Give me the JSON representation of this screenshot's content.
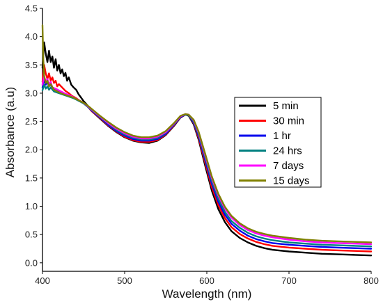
{
  "chart_data": {
    "type": "line",
    "title": "",
    "xlabel": "Wavelength (nm)",
    "ylabel": "Absorbance (a.u)",
    "xlim": [
      400,
      800
    ],
    "ylim": [
      -0.15,
      4.5
    ],
    "x_ticks": [
      400,
      500,
      600,
      700,
      800
    ],
    "y_ticks": [
      0.0,
      0.5,
      1.0,
      1.5,
      2.0,
      2.5,
      3.0,
      3.5,
      4.0,
      4.5
    ],
    "x_tick_labels": [
      "400",
      "500",
      "600",
      "700",
      "800"
    ],
    "y_tick_labels": [
      "0.0",
      "0.5",
      "1.0",
      "1.5",
      "2.0",
      "2.5",
      "3.0",
      "3.5",
      "4.0",
      "4.5"
    ],
    "grid": false,
    "legend_position": "right",
    "series": [
      {
        "name": "5 min",
        "color": "#000000",
        "points": [
          [
            400,
            3.45
          ],
          [
            402,
            3.9
          ],
          [
            404,
            3.7
          ],
          [
            406,
            3.55
          ],
          [
            408,
            3.75
          ],
          [
            410,
            3.55
          ],
          [
            412,
            3.65
          ],
          [
            414,
            3.45
          ],
          [
            416,
            3.6
          ],
          [
            418,
            3.4
          ],
          [
            420,
            3.5
          ],
          [
            422,
            3.35
          ],
          [
            424,
            3.42
          ],
          [
            426,
            3.3
          ],
          [
            428,
            3.36
          ],
          [
            430,
            3.22
          ],
          [
            432,
            3.28
          ],
          [
            435,
            3.15
          ],
          [
            438,
            3.1
          ],
          [
            441,
            3.06
          ],
          [
            444,
            2.98
          ],
          [
            447,
            2.92
          ],
          [
            450,
            2.86
          ],
          [
            455,
            2.78
          ],
          [
            460,
            2.68
          ],
          [
            470,
            2.55
          ],
          [
            480,
            2.42
          ],
          [
            490,
            2.31
          ],
          [
            500,
            2.22
          ],
          [
            510,
            2.16
          ],
          [
            520,
            2.13
          ],
          [
            530,
            2.12
          ],
          [
            540,
            2.16
          ],
          [
            550,
            2.26
          ],
          [
            560,
            2.42
          ],
          [
            568,
            2.57
          ],
          [
            574,
            2.62
          ],
          [
            578,
            2.6
          ],
          [
            584,
            2.45
          ],
          [
            590,
            2.18
          ],
          [
            598,
            1.72
          ],
          [
            606,
            1.28
          ],
          [
            614,
            0.95
          ],
          [
            622,
            0.72
          ],
          [
            630,
            0.56
          ],
          [
            640,
            0.44
          ],
          [
            650,
            0.36
          ],
          [
            660,
            0.3
          ],
          [
            670,
            0.26
          ],
          [
            680,
            0.23
          ],
          [
            700,
            0.2
          ],
          [
            720,
            0.18
          ],
          [
            740,
            0.16
          ],
          [
            760,
            0.15
          ],
          [
            780,
            0.14
          ],
          [
            800,
            0.13
          ]
        ]
      },
      {
        "name": "30 min",
        "color": "#ff0000",
        "points": [
          [
            400,
            3.2
          ],
          [
            402,
            3.5
          ],
          [
            404,
            3.35
          ],
          [
            406,
            3.25
          ],
          [
            408,
            3.35
          ],
          [
            410,
            3.22
          ],
          [
            412,
            3.28
          ],
          [
            414,
            3.18
          ],
          [
            416,
            3.22
          ],
          [
            418,
            3.12
          ],
          [
            420,
            3.16
          ],
          [
            424,
            3.1
          ],
          [
            428,
            3.04
          ],
          [
            432,
            3.0
          ],
          [
            436,
            2.95
          ],
          [
            440,
            2.92
          ],
          [
            445,
            2.87
          ],
          [
            450,
            2.83
          ],
          [
            455,
            2.76
          ],
          [
            460,
            2.68
          ],
          [
            470,
            2.56
          ],
          [
            480,
            2.43
          ],
          [
            490,
            2.32
          ],
          [
            500,
            2.23
          ],
          [
            510,
            2.17
          ],
          [
            520,
            2.14
          ],
          [
            530,
            2.14
          ],
          [
            540,
            2.17
          ],
          [
            550,
            2.27
          ],
          [
            560,
            2.43
          ],
          [
            568,
            2.58
          ],
          [
            574,
            2.62
          ],
          [
            578,
            2.61
          ],
          [
            584,
            2.47
          ],
          [
            590,
            2.21
          ],
          [
            598,
            1.77
          ],
          [
            606,
            1.34
          ],
          [
            614,
            1.02
          ],
          [
            622,
            0.79
          ],
          [
            630,
            0.63
          ],
          [
            640,
            0.51
          ],
          [
            650,
            0.43
          ],
          [
            660,
            0.37
          ],
          [
            670,
            0.33
          ],
          [
            680,
            0.3
          ],
          [
            700,
            0.27
          ],
          [
            720,
            0.25
          ],
          [
            740,
            0.23
          ],
          [
            760,
            0.22
          ],
          [
            780,
            0.21
          ],
          [
            800,
            0.2
          ]
        ]
      },
      {
        "name": "1 hr",
        "color": "#0000ee",
        "points": [
          [
            400,
            3.1
          ],
          [
            402,
            3.25
          ],
          [
            404,
            3.15
          ],
          [
            406,
            3.2
          ],
          [
            408,
            3.12
          ],
          [
            410,
            3.16
          ],
          [
            412,
            3.08
          ],
          [
            416,
            3.05
          ],
          [
            420,
            3.03
          ],
          [
            424,
            3.0
          ],
          [
            428,
            2.98
          ],
          [
            432,
            2.96
          ],
          [
            436,
            2.93
          ],
          [
            440,
            2.9
          ],
          [
            445,
            2.86
          ],
          [
            450,
            2.82
          ],
          [
            455,
            2.76
          ],
          [
            460,
            2.69
          ],
          [
            470,
            2.57
          ],
          [
            480,
            2.44
          ],
          [
            490,
            2.33
          ],
          [
            500,
            2.25
          ],
          [
            510,
            2.19
          ],
          [
            520,
            2.16
          ],
          [
            530,
            2.16
          ],
          [
            540,
            2.19
          ],
          [
            550,
            2.28
          ],
          [
            560,
            2.44
          ],
          [
            568,
            2.58
          ],
          [
            574,
            2.62
          ],
          [
            578,
            2.61
          ],
          [
            584,
            2.48
          ],
          [
            590,
            2.24
          ],
          [
            598,
            1.82
          ],
          [
            606,
            1.4
          ],
          [
            614,
            1.08
          ],
          [
            622,
            0.85
          ],
          [
            630,
            0.69
          ],
          [
            640,
            0.57
          ],
          [
            650,
            0.48
          ],
          [
            660,
            0.42
          ],
          [
            670,
            0.38
          ],
          [
            680,
            0.35
          ],
          [
            700,
            0.32
          ],
          [
            720,
            0.3
          ],
          [
            740,
            0.28
          ],
          [
            760,
            0.27
          ],
          [
            780,
            0.26
          ],
          [
            800,
            0.25
          ]
        ]
      },
      {
        "name": "24 hrs",
        "color": "#008080",
        "points": [
          [
            400,
            3.05
          ],
          [
            402,
            3.15
          ],
          [
            404,
            3.08
          ],
          [
            406,
            3.12
          ],
          [
            408,
            3.06
          ],
          [
            410,
            3.1
          ],
          [
            414,
            3.03
          ],
          [
            418,
            3.01
          ],
          [
            422,
            2.99
          ],
          [
            426,
            2.97
          ],
          [
            430,
            2.95
          ],
          [
            434,
            2.93
          ],
          [
            438,
            2.91
          ],
          [
            442,
            2.88
          ],
          [
            446,
            2.85
          ],
          [
            450,
            2.82
          ],
          [
            455,
            2.76
          ],
          [
            460,
            2.7
          ],
          [
            470,
            2.58
          ],
          [
            480,
            2.46
          ],
          [
            490,
            2.35
          ],
          [
            500,
            2.27
          ],
          [
            510,
            2.21
          ],
          [
            520,
            2.18
          ],
          [
            530,
            2.18
          ],
          [
            540,
            2.21
          ],
          [
            550,
            2.3
          ],
          [
            560,
            2.45
          ],
          [
            568,
            2.59
          ],
          [
            574,
            2.62
          ],
          [
            578,
            2.61
          ],
          [
            584,
            2.5
          ],
          [
            590,
            2.27
          ],
          [
            598,
            1.86
          ],
          [
            606,
            1.45
          ],
          [
            614,
            1.13
          ],
          [
            622,
            0.9
          ],
          [
            630,
            0.74
          ],
          [
            640,
            0.62
          ],
          [
            650,
            0.53
          ],
          [
            660,
            0.47
          ],
          [
            670,
            0.43
          ],
          [
            680,
            0.4
          ],
          [
            700,
            0.36
          ],
          [
            720,
            0.34
          ],
          [
            740,
            0.32
          ],
          [
            760,
            0.31
          ],
          [
            780,
            0.3
          ],
          [
            800,
            0.29
          ]
        ]
      },
      {
        "name": "7 days",
        "color": "#ff00ff",
        "points": [
          [
            400,
            3.15
          ],
          [
            402,
            3.3
          ],
          [
            404,
            3.2
          ],
          [
            406,
            3.25
          ],
          [
            408,
            3.15
          ],
          [
            410,
            3.2
          ],
          [
            412,
            3.1
          ],
          [
            416,
            3.08
          ],
          [
            420,
            3.05
          ],
          [
            424,
            3.02
          ],
          [
            428,
            2.99
          ],
          [
            432,
            2.97
          ],
          [
            436,
            2.94
          ],
          [
            440,
            2.91
          ],
          [
            445,
            2.87
          ],
          [
            450,
            2.83
          ],
          [
            455,
            2.77
          ],
          [
            460,
            2.71
          ],
          [
            470,
            2.59
          ],
          [
            480,
            2.47
          ],
          [
            490,
            2.37
          ],
          [
            500,
            2.29
          ],
          [
            510,
            2.23
          ],
          [
            520,
            2.2
          ],
          [
            530,
            2.2
          ],
          [
            540,
            2.23
          ],
          [
            550,
            2.31
          ],
          [
            560,
            2.46
          ],
          [
            568,
            2.59
          ],
          [
            574,
            2.63
          ],
          [
            578,
            2.62
          ],
          [
            584,
            2.52
          ],
          [
            590,
            2.3
          ],
          [
            598,
            1.9
          ],
          [
            606,
            1.5
          ],
          [
            614,
            1.19
          ],
          [
            622,
            0.96
          ],
          [
            630,
            0.8
          ],
          [
            640,
            0.67
          ],
          [
            650,
            0.58
          ],
          [
            660,
            0.52
          ],
          [
            670,
            0.48
          ],
          [
            680,
            0.45
          ],
          [
            700,
            0.41
          ],
          [
            720,
            0.38
          ],
          [
            740,
            0.36
          ],
          [
            760,
            0.35
          ],
          [
            780,
            0.34
          ],
          [
            800,
            0.33
          ]
        ]
      },
      {
        "name": "15 days",
        "color": "#808000",
        "points": [
          [
            400,
            4.2
          ],
          [
            401,
            3.6
          ],
          [
            402,
            3.3
          ],
          [
            404,
            3.18
          ],
          [
            406,
            3.22
          ],
          [
            408,
            3.12
          ],
          [
            410,
            3.16
          ],
          [
            414,
            3.06
          ],
          [
            418,
            3.03
          ],
          [
            422,
            3.0
          ],
          [
            426,
            2.98
          ],
          [
            430,
            2.96
          ],
          [
            434,
            2.94
          ],
          [
            438,
            2.92
          ],
          [
            442,
            2.89
          ],
          [
            446,
            2.86
          ],
          [
            450,
            2.83
          ],
          [
            455,
            2.78
          ],
          [
            460,
            2.72
          ],
          [
            470,
            2.6
          ],
          [
            480,
            2.49
          ],
          [
            490,
            2.39
          ],
          [
            500,
            2.31
          ],
          [
            510,
            2.25
          ],
          [
            520,
            2.22
          ],
          [
            530,
            2.22
          ],
          [
            540,
            2.25
          ],
          [
            550,
            2.33
          ],
          [
            560,
            2.47
          ],
          [
            568,
            2.6
          ],
          [
            574,
            2.63
          ],
          [
            578,
            2.62
          ],
          [
            584,
            2.53
          ],
          [
            590,
            2.32
          ],
          [
            598,
            1.93
          ],
          [
            606,
            1.53
          ],
          [
            614,
            1.22
          ],
          [
            622,
            0.99
          ],
          [
            630,
            0.83
          ],
          [
            640,
            0.7
          ],
          [
            650,
            0.61
          ],
          [
            660,
            0.55
          ],
          [
            670,
            0.51
          ],
          [
            680,
            0.48
          ],
          [
            700,
            0.44
          ],
          [
            720,
            0.41
          ],
          [
            740,
            0.39
          ],
          [
            760,
            0.38
          ],
          [
            780,
            0.37
          ],
          [
            800,
            0.36
          ]
        ]
      }
    ]
  }
}
